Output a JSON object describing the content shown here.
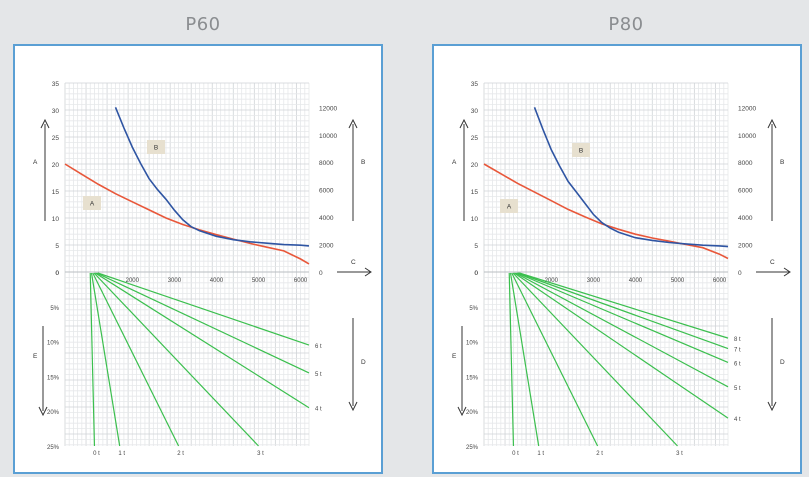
{
  "panels": [
    {
      "title": "P60"
    },
    {
      "title": "P80"
    }
  ],
  "chart_data": [
    {
      "type": "line",
      "title": "P60",
      "top": {
        "x_ticks": [
          "2000",
          "3000",
          "4000",
          "5000",
          "6000"
        ],
        "y_left_ticks": [
          "0",
          "5",
          "10",
          "15",
          "20",
          "25",
          "30",
          "35"
        ],
        "y_right_ticks": [
          "0",
          "2000",
          "4000",
          "6000",
          "8000",
          "10000",
          "12000"
        ],
        "left_axis_label": "A",
        "right_axis_label": "B",
        "x_axis_label": "C",
        "series": [
          {
            "name": "A",
            "color": "#e8573a",
            "axis": "left",
            "x": [
              400,
              800,
              1200,
              1600,
              2000,
              2400,
              2800,
              3200,
              3600,
              4000,
              4400,
              4800,
              5200,
              5600,
              6000,
              6200
            ],
            "y": [
              20,
              18.1,
              16.2,
              14.5,
              13,
              11.5,
              10,
              8.8,
              7.8,
              6.9,
              6.1,
              5.3,
              4.6,
              3.9,
              2.4,
              1.5
            ]
          },
          {
            "name": "B",
            "color": "#2f55a3",
            "axis": "right",
            "x": [
              1600,
              1800,
              2000,
              2200,
              2400,
              2600,
              2800,
              3000,
              3200,
              3400,
              3600,
              4000,
              4400,
              4800,
              5200,
              5600,
              6000,
              6200
            ],
            "y": [
              12000,
              10500,
              9100,
              7900,
              6800,
              6000,
              5300,
              4500,
              3800,
              3300,
              3000,
              2600,
              2350,
              2200,
              2100,
              2000,
              1950,
              1900
            ]
          }
        ]
      },
      "bottom": {
        "y_left_ticks": [
          "0",
          "5%",
          "10%",
          "15%",
          "20%",
          "25%"
        ],
        "left_axis_label": "E",
        "right_axis_label": "D",
        "x_max": 6200,
        "y_max": 25,
        "lines": [
          {
            "label": "0 t",
            "x_end": 1100,
            "y_end": 25
          },
          {
            "label": "1 t",
            "x_end": 1700,
            "y_end": 25
          },
          {
            "label": "2 t",
            "x_end": 3100,
            "y_end": 25
          },
          {
            "label": "3 t",
            "x_end": 5000,
            "y_end": 25
          },
          {
            "label": "4 t",
            "x_end": 6200,
            "y_end": 19.5
          },
          {
            "label": "5 t",
            "x_end": 6200,
            "y_end": 14.5
          },
          {
            "label": "6 t",
            "x_end": 6200,
            "y_end": 10.5
          }
        ]
      }
    },
    {
      "type": "line",
      "title": "P80",
      "top": {
        "x_ticks": [
          "2000",
          "3000",
          "4000",
          "5000",
          "6000"
        ],
        "y_left_ticks": [
          "0",
          "5",
          "10",
          "15",
          "20",
          "25",
          "30",
          "35"
        ],
        "y_right_ticks": [
          "0",
          "2000",
          "4000",
          "6000",
          "8000",
          "10000",
          "12000"
        ],
        "left_axis_label": "A",
        "right_axis_label": "B",
        "x_axis_label": "C",
        "series": [
          {
            "name": "A",
            "color": "#e8573a",
            "axis": "left",
            "x": [
              400,
              800,
              1200,
              1600,
              2000,
              2400,
              2800,
              3200,
              3600,
              4000,
              4400,
              4800,
              5200,
              5600,
              6000,
              6200
            ],
            "y": [
              20,
              18.2,
              16.4,
              14.8,
              13.2,
              11.6,
              10.2,
              8.9,
              7.9,
              7,
              6.3,
              5.7,
              5.1,
              4.5,
              3.3,
              2.5
            ]
          },
          {
            "name": "B",
            "color": "#2f55a3",
            "axis": "right",
            "x": [
              1600,
              1800,
              2000,
              2200,
              2400,
              2600,
              2800,
              3000,
              3200,
              3400,
              3600,
              4000,
              4400,
              4800,
              5200,
              5600,
              6000,
              6200
            ],
            "y": [
              12000,
              10400,
              8900,
              7700,
              6600,
              5800,
              5000,
              4200,
              3600,
              3200,
              2900,
              2500,
              2300,
              2150,
              2050,
              1950,
              1900,
              1850
            ]
          }
        ]
      },
      "bottom": {
        "y_left_ticks": [
          "0",
          "5%",
          "10%",
          "15%",
          "20%",
          "25%"
        ],
        "left_axis_label": "E",
        "right_axis_label": "D",
        "x_max": 6200,
        "y_max": 25,
        "lines": [
          {
            "label": "0 t",
            "x_end": 1100,
            "y_end": 25
          },
          {
            "label": "1 t",
            "x_end": 1700,
            "y_end": 25
          },
          {
            "label": "2 t",
            "x_end": 3100,
            "y_end": 25
          },
          {
            "label": "3 t",
            "x_end": 5000,
            "y_end": 25
          },
          {
            "label": "4 t",
            "x_end": 6200,
            "y_end": 21
          },
          {
            "label": "5 t",
            "x_end": 6200,
            "y_end": 16.5
          },
          {
            "label": "6 t",
            "x_end": 6200,
            "y_end": 13
          },
          {
            "label": "7 t",
            "x_end": 6200,
            "y_end": 11
          },
          {
            "label": "8 t",
            "x_end": 6200,
            "y_end": 9.5
          }
        ]
      }
    }
  ]
}
